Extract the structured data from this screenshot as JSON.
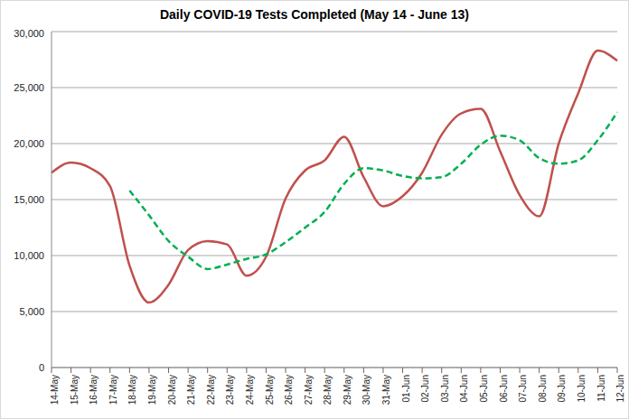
{
  "chart_data": {
    "type": "line",
    "title": "Daily COVID-19 Tests Completed (May 14 - June 13)",
    "categories": [
      "14-May",
      "15-May",
      "16-May",
      "17-May",
      "18-May",
      "19-May",
      "20-May",
      "21-May",
      "22-May",
      "23-May",
      "24-May",
      "25-May",
      "26-May",
      "27-May",
      "28-May",
      "29-May",
      "30-May",
      "31-May",
      "01-Jun",
      "02-Jun",
      "03-Jun",
      "04-Jun",
      "05-Jun",
      "06-Jun",
      "07-Jun",
      "08-Jun",
      "09-Jun",
      "10-Jun",
      "11-Jun",
      "12-Jun"
    ],
    "series": [
      {
        "color": "#c0504d",
        "line_style": "solid",
        "values": [
          17400,
          18300,
          17800,
          16200,
          9100,
          5800,
          7400,
          10500,
          11300,
          11000,
          8200,
          9900,
          15100,
          17600,
          18500,
          20600,
          17000,
          14400,
          15300,
          17400,
          20800,
          22700,
          23100,
          19300,
          15400,
          13500,
          20000,
          24500,
          28300,
          27400
        ]
      },
      {
        "color": "#00b050",
        "line_style": "dashed",
        "values": [
          null,
          null,
          null,
          null,
          15800,
          13600,
          11300,
          9900,
          8800,
          9200,
          9700,
          10100,
          11200,
          12500,
          13900,
          16400,
          17800,
          17600,
          17100,
          16900,
          17000,
          18200,
          19900,
          20700,
          20300,
          18700,
          18200,
          18500,
          20300,
          22800
        ]
      }
    ],
    "ylim": [
      0,
      30000
    ],
    "yticks": [
      0,
      {
        "value": 5000,
        "label": "5,000"
      },
      {
        "value": 10000,
        "label": "10,000"
      },
      {
        "value": 15000,
        "label": "15,000"
      },
      {
        "value": 20000,
        "label": "20,000"
      },
      {
        "value": 25000,
        "label": "25,000"
      },
      {
        "value": 30000,
        "label": "30,000"
      }
    ],
    "grid": true
  }
}
